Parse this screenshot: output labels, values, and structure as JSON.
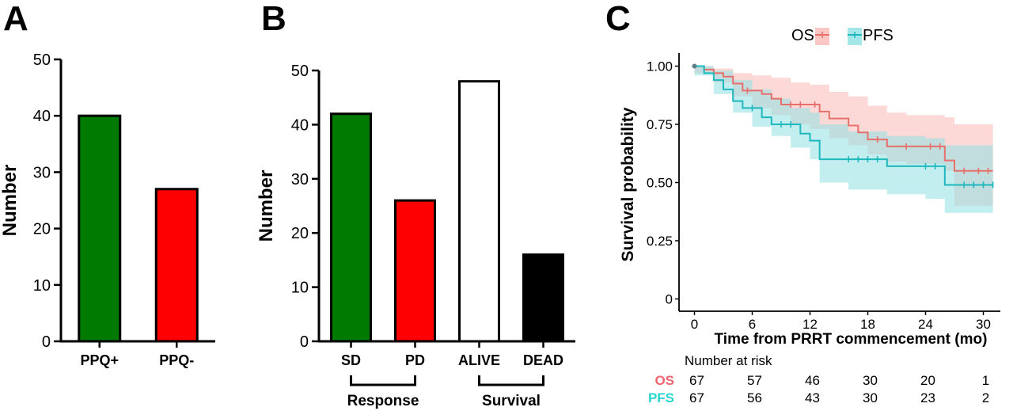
{
  "panels": {
    "A": {
      "letter": "A"
    },
    "B": {
      "letter": "B",
      "groups": [
        {
          "label": "Response"
        },
        {
          "label": "Survival"
        }
      ]
    },
    "C": {
      "letter": "C",
      "risk_title": "Number at risk"
    }
  },
  "colors": {
    "green": "#007a00",
    "red": "#ff0000",
    "white": "#ffffff",
    "black": "#000000",
    "os": "#e8706b",
    "os_band": "#f9b9b7",
    "pfs": "#1fb8bf",
    "pfs_band": "#8fe0e2",
    "os_label": "#f0646e",
    "pfs_label": "#27d7cf"
  },
  "chart_data": [
    {
      "type": "bar",
      "categories": [
        "PPQ+",
        "PPQ-"
      ],
      "values": [
        40,
        27
      ],
      "colors": [
        "green",
        "red"
      ],
      "ylabel": "Number",
      "ylim": [
        0,
        50
      ],
      "yticks": [
        0,
        10,
        20,
        30,
        40,
        50
      ]
    },
    {
      "type": "bar",
      "categories": [
        "SD",
        "PD",
        "ALIVE",
        "DEAD"
      ],
      "values": [
        42,
        26,
        48,
        16
      ],
      "colors": [
        "green",
        "red",
        "white",
        "black"
      ],
      "ylabel": "Number",
      "ylim": [
        0,
        50
      ],
      "yticks": [
        0,
        10,
        20,
        30,
        40,
        50
      ]
    },
    {
      "type": "line",
      "xlabel": "Time from PRRT commencement (mo)",
      "ylabel": "Survival probability",
      "xlim": [
        0,
        31
      ],
      "ylim": [
        0,
        1
      ],
      "xticks": [
        0,
        6,
        12,
        18,
        24,
        30
      ],
      "ytick_labels": [
        "0",
        "0.25",
        "0.50",
        "0.75",
        "1.00"
      ],
      "legend_position": "top",
      "series": [
        {
          "name": "OS",
          "steps": [
            [
              0,
              1.0
            ],
            [
              1,
              0.985
            ],
            [
              2,
              0.97
            ],
            [
              3,
              0.955
            ],
            [
              4,
              0.925
            ],
            [
              5,
              0.895
            ],
            [
              7,
              0.88
            ],
            [
              8,
              0.86
            ],
            [
              9,
              0.835
            ],
            [
              13,
              0.805
            ],
            [
              14,
              0.775
            ],
            [
              16,
              0.745
            ],
            [
              17,
              0.715
            ],
            [
              18,
              0.685
            ],
            [
              20,
              0.655
            ],
            [
              26,
              0.595
            ],
            [
              27,
              0.55
            ],
            [
              31,
              0.55
            ]
          ],
          "censor": [
            5.5,
            10,
            11,
            12.5,
            19,
            22,
            24.5,
            25.5,
            28,
            29.5,
            30.5
          ],
          "band": {
            "times": [
              0,
              2,
              4,
              6,
              8,
              10,
              12,
              14,
              16,
              18,
              20,
              22,
              24,
              26,
              27,
              31
            ],
            "upper": [
              1.0,
              0.99,
              0.97,
              0.96,
              0.95,
              0.93,
              0.92,
              0.89,
              0.87,
              0.83,
              0.8,
              0.79,
              0.79,
              0.78,
              0.75,
              0.75
            ],
            "lower": [
              0.97,
              0.93,
              0.87,
              0.82,
              0.79,
              0.75,
              0.73,
              0.69,
              0.66,
              0.62,
              0.59,
              0.58,
              0.58,
              0.55,
              0.4,
              0.4
            ]
          }
        },
        {
          "name": "PFS",
          "steps": [
            [
              0,
              1.0
            ],
            [
              1,
              0.97
            ],
            [
              2,
              0.94
            ],
            [
              3,
              0.9
            ],
            [
              4,
              0.85
            ],
            [
              5,
              0.82
            ],
            [
              7,
              0.78
            ],
            [
              8,
              0.75
            ],
            [
              11,
              0.71
            ],
            [
              12,
              0.68
            ],
            [
              13,
              0.6
            ],
            [
              20,
              0.57
            ],
            [
              26,
              0.49
            ],
            [
              31,
              0.49
            ]
          ],
          "censor": [
            6,
            9,
            10,
            16,
            17,
            18,
            19,
            24,
            25,
            28,
            29,
            30,
            31
          ],
          "band": {
            "times": [
              0,
              2,
              4,
              6,
              8,
              10,
              12,
              13,
              16,
              20,
              24,
              26,
              31
            ],
            "upper": [
              1.0,
              0.98,
              0.94,
              0.9,
              0.86,
              0.82,
              0.8,
              0.75,
              0.72,
              0.7,
              0.69,
              0.66,
              0.66
            ],
            "lower": [
              0.96,
              0.88,
              0.8,
              0.74,
              0.7,
              0.65,
              0.6,
              0.5,
              0.47,
              0.45,
              0.43,
              0.37,
              0.37
            ]
          }
        }
      ],
      "risk_table": {
        "times": [
          0,
          6,
          12,
          18,
          24,
          30
        ],
        "rows": [
          {
            "name": "OS",
            "values": [
              67,
              57,
              46,
              30,
              20,
              1
            ]
          },
          {
            "name": "PFS",
            "values": [
              67,
              56,
              43,
              30,
              23,
              2
            ]
          }
        ]
      }
    }
  ]
}
